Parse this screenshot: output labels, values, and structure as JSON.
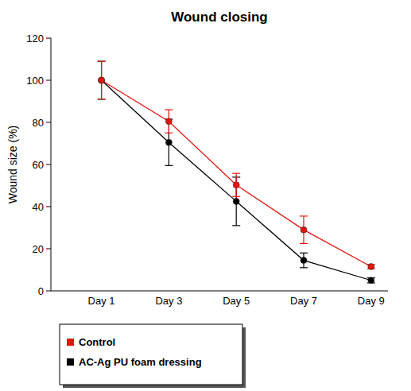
{
  "chart_data": {
    "type": "line",
    "title": "Wound closing",
    "y_label": "Wound size (%)",
    "categories": [
      "Day 1",
      "Day 3",
      "Day 5",
      "Day 7",
      "Day 9"
    ],
    "ylim": [
      0,
      120
    ],
    "yticks": [
      0,
      20,
      40,
      60,
      80,
      100,
      120
    ],
    "grid": false,
    "legend": "bottom",
    "marker": "circle",
    "series": [
      {
        "name": "Control",
        "color": "#e3150f",
        "values": [
          100,
          80.5,
          50.3,
          29,
          11.5
        ],
        "errors": [
          9,
          5.5,
          5.5,
          6.5,
          1
        ]
      },
      {
        "name": "AC-Ag PU foam dressing",
        "color": "#000000",
        "values": [
          100,
          70.5,
          42.5,
          14.5,
          5
        ],
        "errors": [
          9,
          11,
          11.5,
          3.5,
          1.2
        ]
      }
    ]
  }
}
